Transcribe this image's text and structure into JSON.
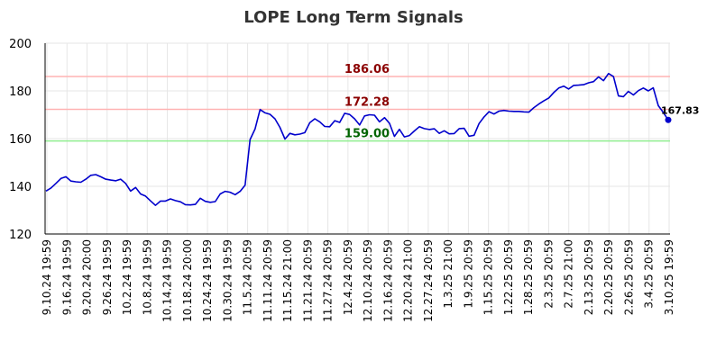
{
  "chart_data": {
    "type": "line",
    "title": "LOPE Long Term Signals",
    "xlabel": "",
    "ylabel": "",
    "ylim": [
      120,
      200
    ],
    "yticks": [
      120,
      140,
      160,
      180,
      200
    ],
    "grid": true,
    "x_tick_labels": [
      "9.10.24 19:59",
      "9.16.24 19:59",
      "9.20.24 20:00",
      "9.26.24 19:59",
      "10.2.24 19:59",
      "10.8.24 19:59",
      "10.14.24 19:59",
      "10.18.24 20:00",
      "10.24.24 19:59",
      "10.30.24 19:59",
      "11.5.24 20:59",
      "11.11.24 20:59",
      "11.15.24 21:00",
      "11.21.24 20:59",
      "11.27.24 20:59",
      "12.4.24 20:59",
      "12.10.24 20:59",
      "12.16.24 20:59",
      "12.20.24 21:00",
      "12.27.24 20:59",
      "1.3.25 21:00",
      "1.9.25 20:59",
      "1.15.25 20:59",
      "1.22.25 20:59",
      "1.28.25 20:59",
      "2.3.25 20:59",
      "2.7.25 21:00",
      "2.13.25 20:59",
      "2.20.25 20:59",
      "2.26.25 20:59",
      "3.4.25 20:59",
      "3.10.25 19:59"
    ],
    "reference_lines": [
      {
        "value": 186.06,
        "label": "186.06",
        "color": "#ffb3b3",
        "label_color": "#8b0000"
      },
      {
        "value": 172.28,
        "label": "172.28",
        "color": "#ffb3b3",
        "label_color": "#8b0000"
      },
      {
        "value": 159.0,
        "label": "159.00",
        "color": "#90ee90",
        "label_color": "#006400"
      }
    ],
    "series": [
      {
        "color": "#0000cc",
        "last_value_label": "167.83",
        "values": [
          138.0,
          139.3,
          141.2,
          143.3,
          144.0,
          142.2,
          141.9,
          141.7,
          143.0,
          144.6,
          144.9,
          144.0,
          143.0,
          142.6,
          142.3,
          143.0,
          141.2,
          138.0,
          139.5,
          136.8,
          135.9,
          133.9,
          132.0,
          133.8,
          133.8,
          134.7,
          134.0,
          133.5,
          132.3,
          132.2,
          132.4,
          135.0,
          133.7,
          133.3,
          133.6,
          136.8,
          137.9,
          137.5,
          136.5,
          137.9,
          140.5,
          159.6,
          164.0,
          172.2,
          170.8,
          170.2,
          168.3,
          164.7,
          159.8,
          162.2,
          161.6,
          161.9,
          162.5,
          166.7,
          168.3,
          167.0,
          165.1,
          165.0,
          167.5,
          166.8,
          170.6,
          170.1,
          168.3,
          165.7,
          169.5,
          170.0,
          169.8,
          167.0,
          168.8,
          166.4,
          160.9,
          163.9,
          160.7,
          161.3,
          163.2,
          165.0,
          164.2,
          163.8,
          164.1,
          162.2,
          163.3,
          162.0,
          162.1,
          164.2,
          164.3,
          161.0,
          161.4,
          166.3,
          169.1,
          171.3,
          170.3,
          171.5,
          171.8,
          171.5,
          171.4,
          171.4,
          171.2,
          171.1,
          173.0,
          174.5,
          175.8,
          177.0,
          179.3,
          181.2,
          182.0,
          180.8,
          182.3,
          182.4,
          182.6,
          183.4,
          183.9,
          185.9,
          184.3,
          187.3,
          186.0,
          177.9,
          177.6,
          179.8,
          178.3,
          180.1,
          181.2,
          180.0,
          181.3,
          173.8,
          171.0,
          167.83
        ]
      }
    ]
  }
}
